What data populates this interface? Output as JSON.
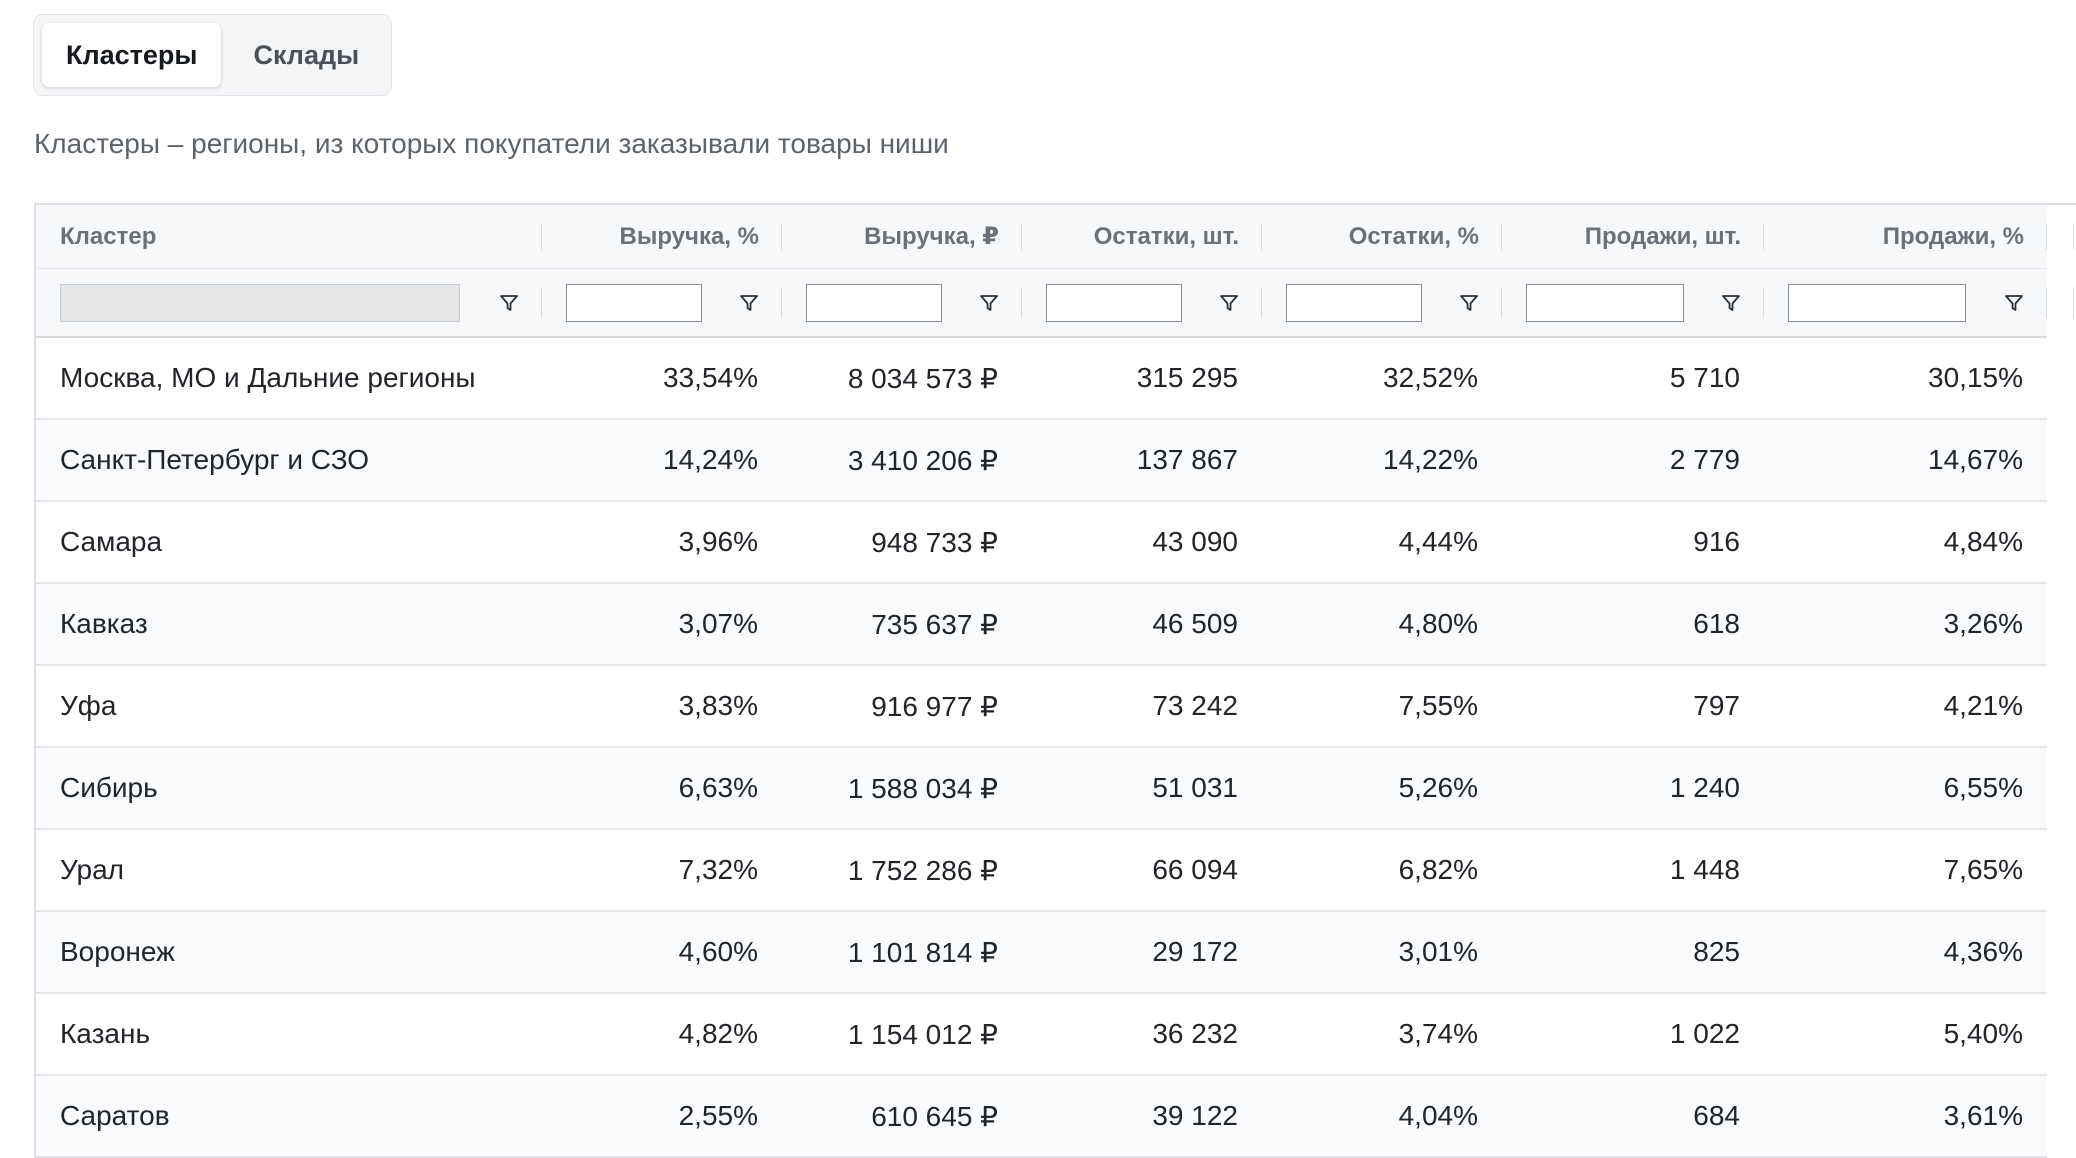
{
  "tabs": [
    {
      "label": "Кластеры",
      "active": true
    },
    {
      "label": "Склады",
      "active": false
    }
  ],
  "description": "Кластеры – регионы, из которых покупатели заказывали товары ниши",
  "table": {
    "columns": [
      "Кластер",
      "Выручка, %",
      "Выручка, ₽",
      "Остатки, шт.",
      "Остатки, %",
      "Продажи, шт.",
      "Продажи, %"
    ],
    "rows": [
      [
        "Москва, МО и Дальние регионы",
        "33,54%",
        "8 034 573 ₽",
        "315 295",
        "32,52%",
        "5 710",
        "30,15%"
      ],
      [
        "Санкт-Петербург и СЗО",
        "14,24%",
        "3 410 206 ₽",
        "137 867",
        "14,22%",
        "2 779",
        "14,67%"
      ],
      [
        "Самара",
        "3,96%",
        "948 733 ₽",
        "43 090",
        "4,44%",
        "916",
        "4,84%"
      ],
      [
        "Кавказ",
        "3,07%",
        "735 637 ₽",
        "46 509",
        "4,80%",
        "618",
        "3,26%"
      ],
      [
        "Уфа",
        "3,83%",
        "916 977 ₽",
        "73 242",
        "7,55%",
        "797",
        "4,21%"
      ],
      [
        "Сибирь",
        "6,63%",
        "1 588 034 ₽",
        "51 031",
        "5,26%",
        "1 240",
        "6,55%"
      ],
      [
        "Урал",
        "7,32%",
        "1 752 286 ₽",
        "66 094",
        "6,82%",
        "1 448",
        "7,65%"
      ],
      [
        "Воронеж",
        "4,60%",
        "1 101 814 ₽",
        "29 172",
        "3,01%",
        "825",
        "4,36%"
      ],
      [
        "Казань",
        "4,82%",
        "1 154 012 ₽",
        "36 232",
        "3,74%",
        "1 022",
        "5,40%"
      ],
      [
        "Саратов",
        "2,55%",
        "610 645 ₽",
        "39 122",
        "4,04%",
        "684",
        "3,61%"
      ]
    ]
  },
  "icons": {
    "filter": "filter-icon"
  }
}
